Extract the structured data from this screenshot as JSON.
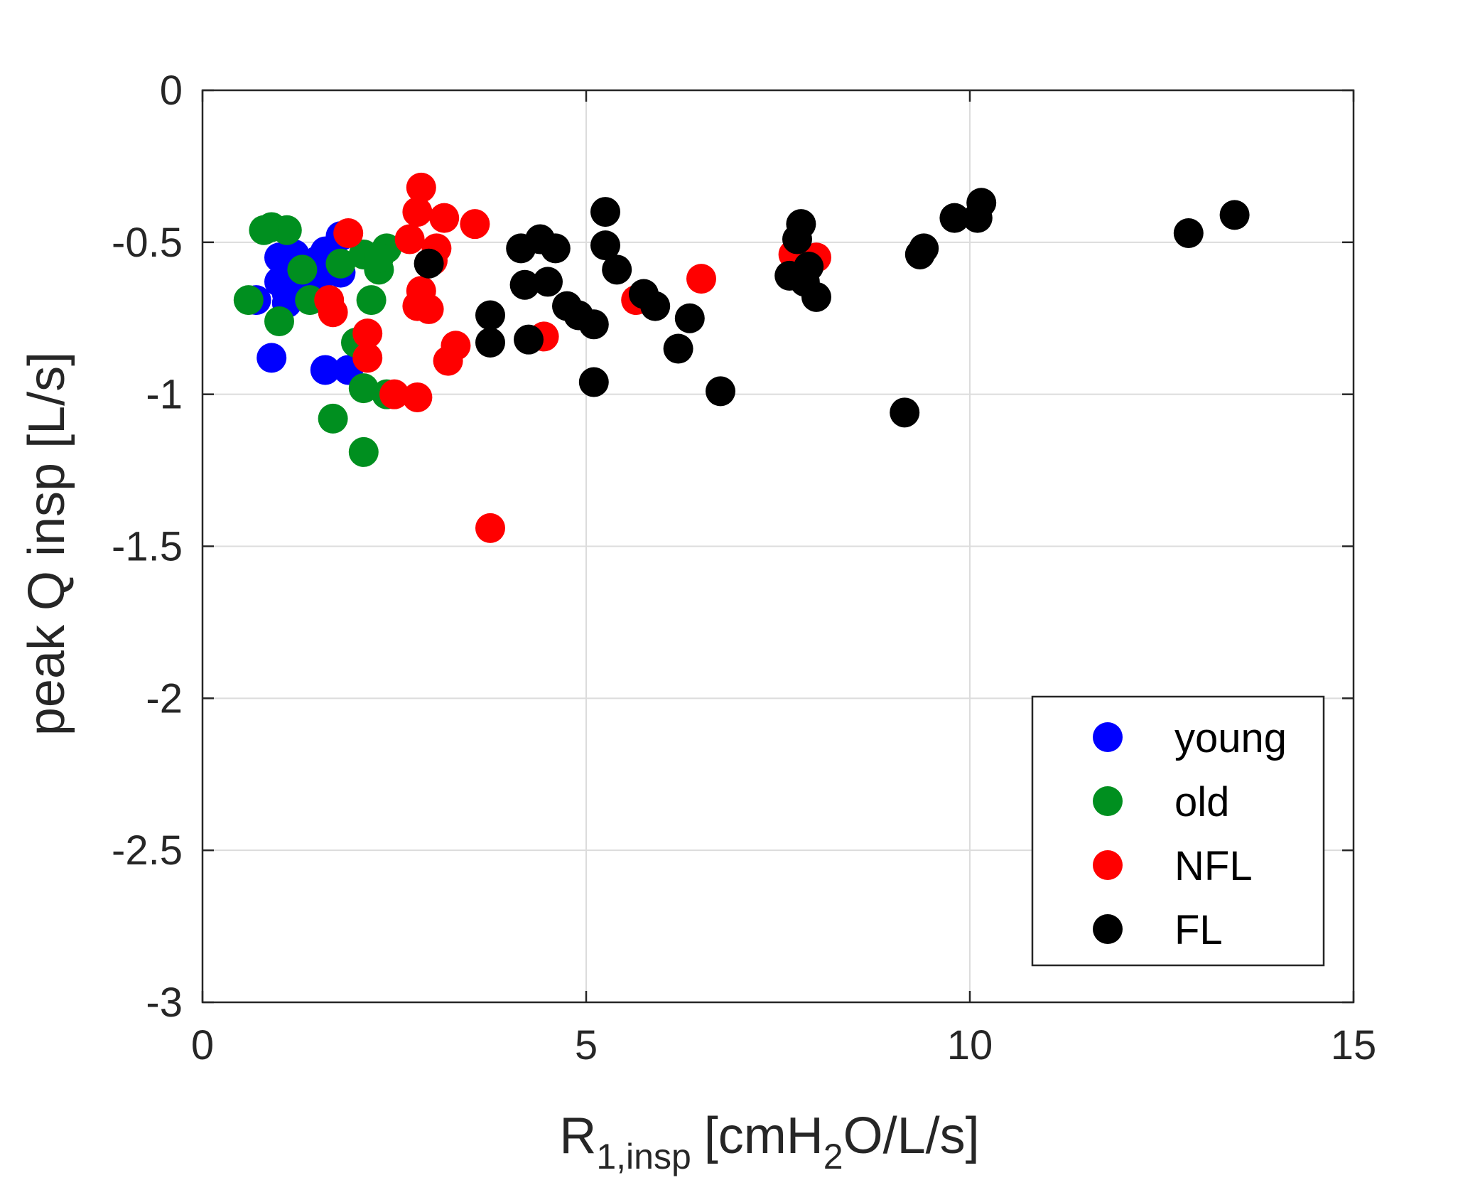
{
  "chart_data": {
    "type": "scatter",
    "xlabel": "R",
    "xlabel_subscript": "1,insp",
    "xlabel_units_pre": "[cmH",
    "xlabel_units_sub": "2",
    "xlabel_units_post": "O/L/s]",
    "ylabel": "peak Q insp [L/s]",
    "xlim": [
      0,
      15
    ],
    "ylim": [
      -3,
      0
    ],
    "xticks": [
      0,
      5,
      10,
      15
    ],
    "xtick_labels": [
      "0",
      "5",
      "10",
      "15"
    ],
    "yticks": [
      -3,
      -2.5,
      -2,
      -1.5,
      -1,
      -0.5,
      0
    ],
    "ytick_labels": [
      "-3",
      "-2.5",
      "-2",
      "-1.5",
      "-1",
      "-0.5",
      "0"
    ],
    "grid": true,
    "legend_position": "bottom-right",
    "series": [
      {
        "name": "young",
        "color": "#0000ff",
        "x": [
          0.7,
          1.0,
          1.1,
          1.2,
          1.0,
          1.1,
          1.3,
          1.2,
          1.1,
          1.2,
          1.4,
          1.5,
          1.6,
          1.8,
          1.7,
          1.6,
          1.5,
          1.3,
          1.4,
          0.9,
          1.6,
          1.9,
          1.8,
          1.2
        ],
        "y": [
          -0.69,
          -0.55,
          -0.58,
          -0.54,
          -0.63,
          -0.67,
          -0.6,
          -0.66,
          -0.7,
          -0.62,
          -0.58,
          -0.56,
          -0.53,
          -0.48,
          -0.57,
          -0.6,
          -0.63,
          -0.64,
          -0.66,
          -0.88,
          -0.92,
          -0.92,
          -0.6,
          -0.55
        ]
      },
      {
        "name": "old",
        "color": "#008f1f",
        "x": [
          0.9,
          1.1,
          0.6,
          0.8,
          1.3,
          1.0,
          1.4,
          1.8,
          2.1,
          2.3,
          2.4,
          2.2,
          2.0,
          2.1,
          2.4,
          1.7,
          2.1,
          2.3
        ],
        "y": [
          -0.45,
          -0.46,
          -0.69,
          -0.46,
          -0.59,
          -0.76,
          -0.69,
          -0.57,
          -0.54,
          -0.59,
          -0.52,
          -0.69,
          -0.83,
          -0.98,
          -1.0,
          -1.08,
          -1.19,
          -0.55
        ]
      },
      {
        "name": "NFL",
        "color": "#ff0000",
        "x": [
          2.85,
          2.8,
          3.15,
          3.55,
          2.7,
          3.05,
          3.0,
          2.85,
          2.8,
          2.95,
          1.9,
          1.65,
          1.7,
          2.15,
          2.15,
          2.5,
          2.8,
          3.3,
          3.2,
          3.75,
          4.45,
          5.65,
          6.5,
          7.7,
          8.0
        ],
        "y": [
          -0.32,
          -0.4,
          -0.42,
          -0.44,
          -0.49,
          -0.52,
          -0.56,
          -0.66,
          -0.71,
          -0.72,
          -0.47,
          -0.69,
          -0.73,
          -0.8,
          -0.88,
          -1.0,
          -1.01,
          -0.84,
          -0.89,
          -1.44,
          -0.81,
          -0.69,
          -0.62,
          -0.54,
          -0.55
        ]
      },
      {
        "name": "FL",
        "color": "#000000",
        "x": [
          2.95,
          3.75,
          3.75,
          4.15,
          4.2,
          4.25,
          4.4,
          4.5,
          4.6,
          4.75,
          4.9,
          5.1,
          5.1,
          5.25,
          5.25,
          5.4,
          5.75,
          5.9,
          6.2,
          6.35,
          6.75,
          7.65,
          7.75,
          7.8,
          7.85,
          7.9,
          8.0,
          9.15,
          9.35,
          9.4,
          9.8,
          10.1,
          10.15,
          12.85,
          13.45
        ],
        "y": [
          -0.57,
          -0.74,
          -0.83,
          -0.52,
          -0.64,
          -0.82,
          -0.49,
          -0.63,
          -0.52,
          -0.71,
          -0.74,
          -0.77,
          -0.96,
          -0.4,
          -0.51,
          -0.59,
          -0.67,
          -0.71,
          -0.85,
          -0.75,
          -0.99,
          -0.61,
          -0.49,
          -0.44,
          -0.63,
          -0.58,
          -0.68,
          -1.06,
          -0.54,
          -0.52,
          -0.42,
          -0.42,
          -0.37,
          -0.47,
          -0.41
        ]
      }
    ]
  }
}
